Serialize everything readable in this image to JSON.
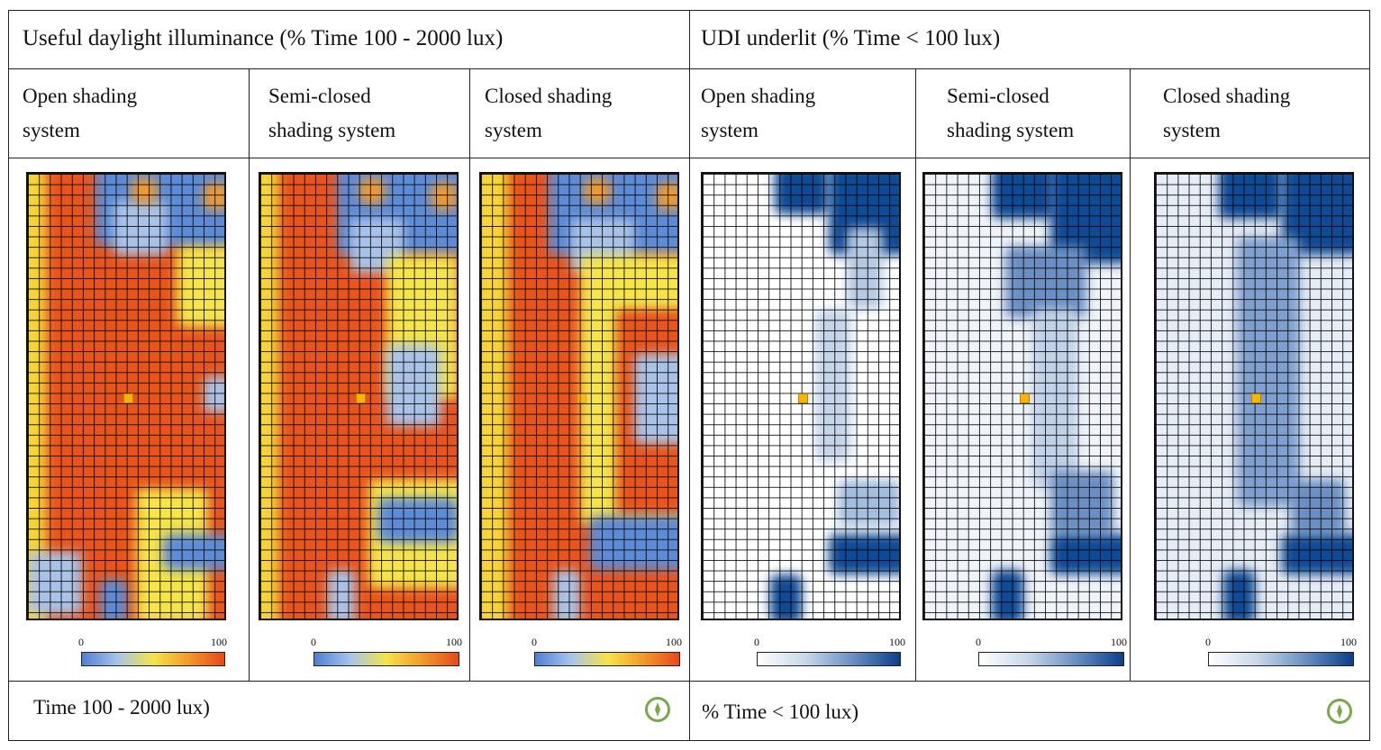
{
  "headers": {
    "udi_useful": "Useful daylight illuminance (% Time 100 - 2000 lux)",
    "udi_underlit": "UDI underlit (% Time < 100 lux)"
  },
  "columns": [
    {
      "label": "Open shading\nsystem",
      "legend_min": "0",
      "legend_max": "100"
    },
    {
      "label": "Semi-closed\nshading system",
      "legend_min": "0",
      "legend_max": "100"
    },
    {
      "label": "Closed shading\n system",
      "legend_min": "0",
      "legend_max": "100"
    },
    {
      "label": "Open shading\nsystem",
      "legend_min": "0",
      "legend_max": "100"
    },
    {
      "label": "Semi-closed\nshading system",
      "legend_min": "0",
      "legend_max": "100"
    },
    {
      "label": "Closed shading\n system",
      "legend_min": "0",
      "legend_max": "100"
    }
  ],
  "footers": {
    "left": "Time 100 - 2000 lux)",
    "right": "% Time < 100 lux)"
  },
  "colors": {
    "udi_scale": [
      "#4f7fd3",
      "#a8c4ea",
      "#f5e44a",
      "#f29a2a",
      "#e8481a"
    ],
    "underlit_scale": [
      "#ffffff",
      "#c9d8ea",
      "#6b8fc3",
      "#0a3f8a"
    ],
    "compass": "#7aa84d",
    "sensor": "#f2b705"
  },
  "icons": {
    "footer_left": "compass-icon",
    "footer_right": "compass-icon"
  }
}
